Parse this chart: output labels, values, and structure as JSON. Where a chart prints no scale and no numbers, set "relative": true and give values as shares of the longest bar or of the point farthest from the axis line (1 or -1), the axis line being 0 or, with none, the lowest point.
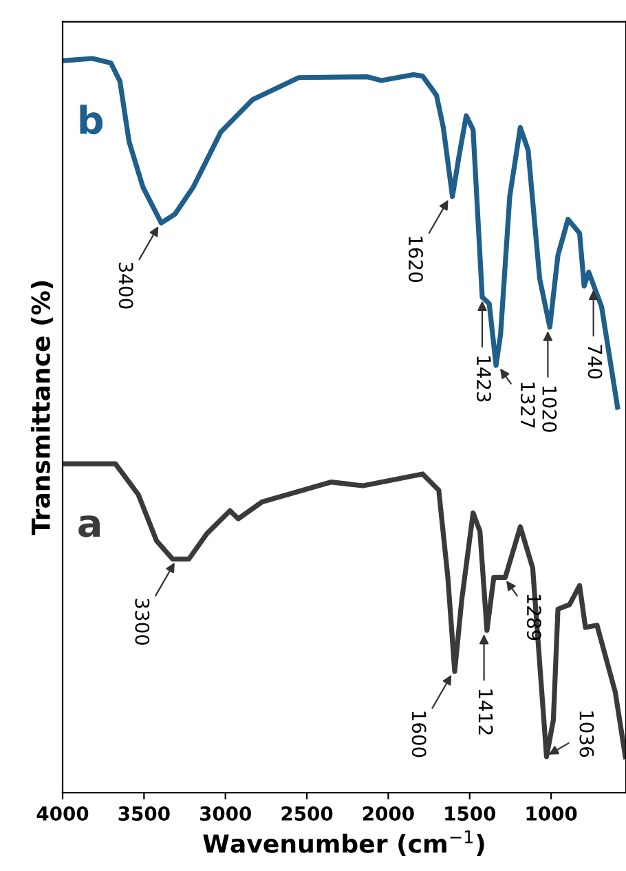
{
  "chart_data": {
    "type": "line",
    "relative": true,
    "xlabel": "Wavenumber (cm$^{−1}$)",
    "ylabel": "Transmittance (%)",
    "xlim": [
      4000,
      540
    ],
    "xticks": [
      4000,
      3500,
      3000,
      2500,
      2000,
      1500,
      1000
    ],
    "grid": false,
    "legend": false,
    "marker": "none",
    "line_style": "solid",
    "series": [
      {
        "name": "b",
        "color": "#1f5f8b",
        "x": [
          3992,
          3817,
          3704,
          3648,
          3592,
          3507,
          3394,
          3310,
          3197,
          3028,
          2833,
          2549,
          2127,
          2042,
          1845,
          1789,
          1704,
          1662,
          1606,
          1564,
          1521,
          1479,
          1423,
          1380,
          1338,
          1310,
          1254,
          1189,
          1141,
          1070,
          1008,
          958,
          896,
          825,
          797,
          769,
          690,
          592
        ],
        "values": [
          0.997,
          1.0,
          0.994,
          0.969,
          0.887,
          0.825,
          0.776,
          0.788,
          0.825,
          0.9,
          0.944,
          0.974,
          0.975,
          0.97,
          0.978,
          0.976,
          0.95,
          0.906,
          0.812,
          0.869,
          0.922,
          0.903,
          0.675,
          0.666,
          0.582,
          0.625,
          0.812,
          0.906,
          0.875,
          0.7,
          0.634,
          0.732,
          0.781,
          0.762,
          0.69,
          0.709,
          0.662,
          0.525
        ]
      },
      {
        "name": "a",
        "color": "#3a3a3a",
        "x": [
          3992,
          3676,
          3535,
          3423,
          3324,
          3225,
          3113,
          2972,
          2921,
          2775,
          2352,
          2155,
          1789,
          1690,
          1634,
          1592,
          1549,
          1479,
          1437,
          1394,
          1352,
          1282,
          1189,
          1113,
          1028,
          986,
          958,
          887,
          825,
          789,
          718,
          606,
          544
        ],
        "values": [
          0.448,
          0.448,
          0.406,
          0.343,
          0.318,
          0.318,
          0.353,
          0.384,
          0.373,
          0.396,
          0.423,
          0.418,
          0.434,
          0.412,
          0.293,
          0.165,
          0.262,
          0.381,
          0.356,
          0.221,
          0.293,
          0.293,
          0.362,
          0.306,
          0.049,
          0.099,
          0.25,
          0.256,
          0.282,
          0.225,
          0.228,
          0.137,
          0.049
        ]
      }
    ],
    "annotations": [
      {
        "text": "3400",
        "x": 3400,
        "y": 0.776
      },
      {
        "text": "1620",
        "x": 1620,
        "y": 0.812
      },
      {
        "text": "1423",
        "x": 1423,
        "y": 0.675
      },
      {
        "text": "1327",
        "x": 1327,
        "y": 0.582
      },
      {
        "text": "1020",
        "x": 1020,
        "y": 0.634
      },
      {
        "text": "740",
        "x": 740,
        "y": 0.69
      },
      {
        "text": "3300",
        "x": 3300,
        "y": 0.318
      },
      {
        "text": "1600",
        "x": 1600,
        "y": 0.165
      },
      {
        "text": "1412",
        "x": 1412,
        "y": 0.221
      },
      {
        "text": "1289",
        "x": 1289,
        "y": 0.293
      },
      {
        "text": "1036",
        "x": 1036,
        "y": 0.049
      }
    ]
  }
}
